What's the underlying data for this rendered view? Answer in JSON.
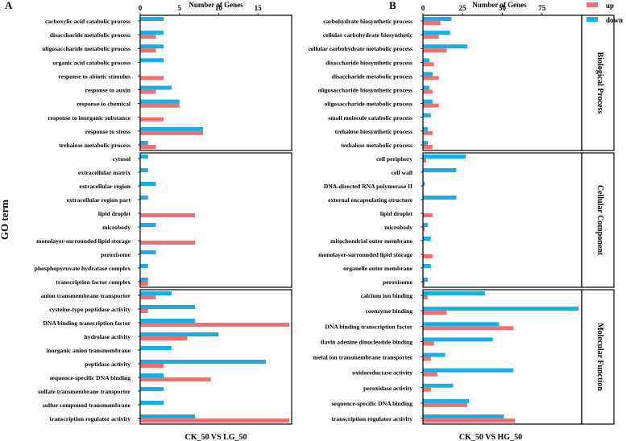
{
  "y_axis_title": "GO  term",
  "legend": [
    {
      "name": "up",
      "color": "#F07070"
    },
    {
      "name": "down",
      "color": "#1AAEE6"
    }
  ],
  "chart_data": [
    {
      "type": "bar",
      "orientation": "horizontal",
      "panel_label": "A",
      "title": "Number of Genes",
      "xlabel": "CK_50 VS LG_50",
      "ylabel": "GO  term",
      "xlim": [
        0,
        19.3
      ],
      "xticks": [
        0,
        5,
        10,
        15
      ],
      "facets": [
        {
          "name": "Biological Process",
          "categories": [
            "carboxylic acid catabolic process",
            "disaccharide metabolic process",
            "oligosaccharide metabolic process",
            "organic acid catabolic process",
            "response to abiotic stimulus",
            "response to auxin",
            "response to chemical",
            "response to inorganic substance",
            "response to stress",
            "trehalose metabolic process"
          ],
          "series": [
            {
              "name": "up",
              "values": [
                0,
                2,
                2,
                0,
                3,
                2,
                5,
                3,
                8,
                2
              ]
            },
            {
              "name": "down",
              "values": [
                3,
                3,
                3,
                3,
                0,
                4,
                5,
                0,
                8,
                1
              ]
            }
          ]
        },
        {
          "name": "Cellular Component",
          "categories": [
            "cytosol",
            "extracellular matrix",
            "extracellular region",
            "extracellular region part",
            "lipid droplet",
            "microbody",
            "monolayer-surrounded lipid storage",
            "peroxisome",
            "phosphopyruvate hydratase complex",
            "transcription factor complex"
          ],
          "series": [
            {
              "name": "up",
              "values": [
                0,
                0,
                0,
                0,
                7,
                0,
                7,
                0,
                0,
                1
              ]
            },
            {
              "name": "down",
              "values": [
                1,
                1,
                2,
                1,
                0,
                2,
                0,
                2,
                1,
                1
              ]
            }
          ]
        },
        {
          "name": "Molecular Function",
          "categories": [
            "anion transmembrane transporter",
            "cysteine-type peptidase activity",
            "DNA binding transcription factor",
            "hydrolase activity",
            "inorganic anion transmembrane",
            "peptidase activity",
            "sequence-specific DNA binding",
            "sulfate transmembrane transporter",
            "sulfur compound transmembrane",
            "transcription regulator activity"
          ],
          "series": [
            {
              "name": "up",
              "values": [
                2,
                1,
                19,
                6,
                0,
                3,
                9,
                0,
                0,
                19
              ]
            },
            {
              "name": "down",
              "values": [
                4,
                7,
                7,
                10,
                4,
                16,
                3,
                3,
                3,
                7
              ]
            }
          ]
        }
      ]
    },
    {
      "type": "bar",
      "orientation": "horizontal",
      "panel_label": "B",
      "title": "Number of Genes",
      "xlabel": "CK_50 VS HG_50",
      "ylabel": "GO  term",
      "xlim": [
        0,
        100
      ],
      "xticks": [
        0,
        25,
        50,
        75
      ],
      "facets": [
        {
          "name": "Biological Process",
          "categories": [
            "carbohydrate biosynthetic process",
            "cellular carbohydrate biosynthetic",
            "cellular carbohydrate metabolic process",
            "disaccharide biosynthetic process",
            "disaccharide metabolic process",
            "oligosaccharide biosynthetic process",
            "oligosaccharide metabolic process",
            "small molecule catabolic process",
            "trehalose biosynthetic process",
            "trehalose metabolic process"
          ],
          "series": [
            {
              "name": "up",
              "values": [
                11,
                10,
                15,
                7,
                10,
                6,
                10,
                0,
                6,
                6
              ]
            },
            {
              "name": "down",
              "values": [
                18,
                17,
                28,
                4,
                6,
                4,
                6,
                5,
                3,
                3
              ]
            }
          ]
        },
        {
          "name": "Cellular Component",
          "categories": [
            "cell periphery",
            "cell wall",
            "DNA-directed RNA polymerase II",
            "external encapsulating structure",
            "lipid droplet",
            "microbody",
            "mitochondrial outer membrane",
            "monolayer-surrounded lipid storage",
            "organelle outer membrane",
            "peroxisome"
          ],
          "series": [
            {
              "name": "up",
              "values": [
                2,
                0,
                0,
                0,
                6,
                1,
                0,
                6,
                0,
                1
              ]
            },
            {
              "name": "down",
              "values": [
                27,
                21,
                1,
                21,
                0,
                3,
                5,
                0,
                5,
                3
              ]
            }
          ]
        },
        {
          "name": "Molecular Function",
          "categories": [
            "calcium ion binding",
            "coenzyme binding",
            "DNA binding transcription factor",
            "flavin adenine dinucleotide binding",
            "metal ion transmembrane transporter",
            "oxidoreductase activity",
            "peroxidase activity",
            "sequence-specific DNA binding",
            "transcription regulator activity"
          ],
          "series": [
            {
              "name": "up",
              "values": [
                3,
                15,
                57,
                7,
                5,
                9,
                5,
                28,
                58
              ]
            },
            {
              "name": "down",
              "values": [
                39,
                98,
                48,
                44,
                14,
                57,
                19,
                29,
                51
              ]
            }
          ]
        }
      ]
    }
  ]
}
